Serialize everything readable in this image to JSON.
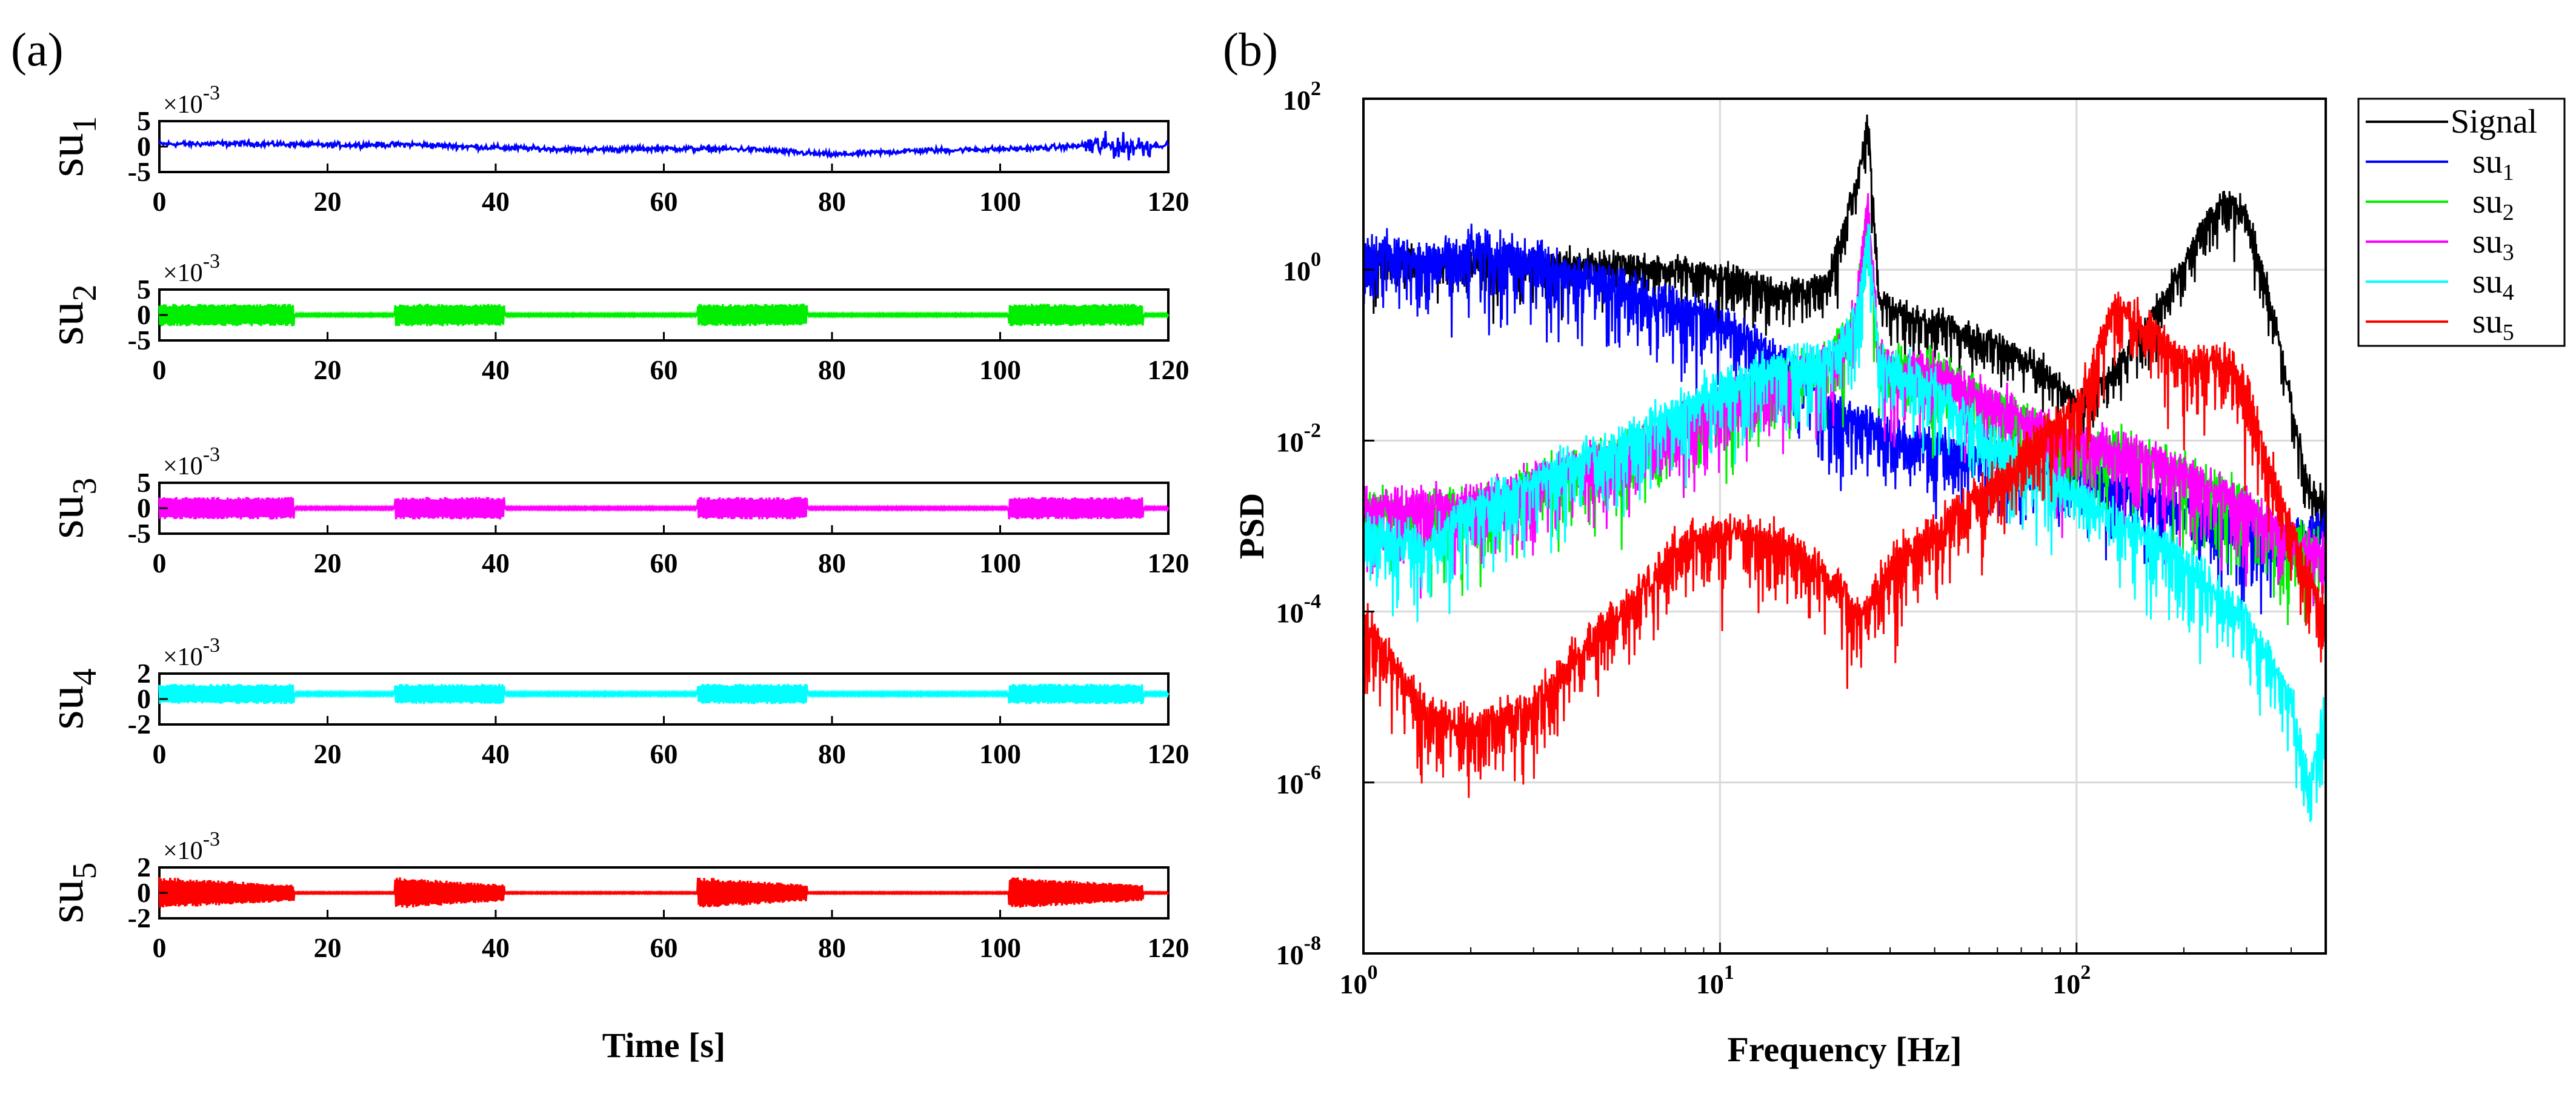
{
  "panel_a_label": "(a)",
  "panel_b_label": "(b)",
  "colors": {
    "su1": "#0000ff",
    "su2": "#00ee00",
    "su3": "#ff00ff",
    "su4": "#00ffff",
    "su5": "#ff0000",
    "signal": "#000000"
  },
  "chart_data": [
    {
      "id": "su1",
      "type": "line",
      "ylabel_main": "su",
      "ylabel_sub": "1",
      "scale_label": "×10",
      "scale_exp": "-3",
      "xlim": [
        0,
        120
      ],
      "ylim": [
        -5,
        5
      ],
      "yticks": [
        "5",
        "0",
        "-5"
      ],
      "xticks": [
        "0",
        "20",
        "40",
        "60",
        "80",
        "100",
        "120"
      ],
      "x": [
        0,
        10,
        20,
        30,
        40,
        50,
        60,
        70,
        80,
        90,
        100,
        105,
        110,
        115,
        120
      ],
      "y": [
        0.5,
        0.6,
        0.3,
        0.4,
        -0.2,
        -0.6,
        -0.4,
        -0.5,
        -1.6,
        -0.8,
        -0.5,
        -0.3,
        0.2,
        0.0,
        0.3
      ],
      "noise_amplitude": 0.8,
      "burst": {
        "x_start": 110,
        "x_end": 118,
        "amplitude": 3.5
      }
    },
    {
      "id": "su2",
      "type": "line",
      "ylabel_main": "su",
      "ylabel_sub": "2",
      "scale_label": "×10",
      "scale_exp": "-3",
      "xlim": [
        0,
        120
      ],
      "ylim": [
        -5,
        5
      ],
      "yticks": [
        "5",
        "0",
        "-5"
      ],
      "xticks": [
        "0",
        "20",
        "40",
        "60",
        "80",
        "100",
        "120"
      ],
      "active_segments": [
        [
          0,
          16
        ],
        [
          28,
          41
        ],
        [
          64,
          77
        ],
        [
          101,
          117
        ]
      ],
      "active_amplitude": 2.2,
      "quiet_amplitude": 0.2
    },
    {
      "id": "su3",
      "type": "line",
      "ylabel_main": "su",
      "ylabel_sub": "3",
      "scale_label": "×10",
      "scale_exp": "-3",
      "xlim": [
        0,
        120
      ],
      "ylim": [
        -5,
        5
      ],
      "yticks": [
        "5",
        "0",
        "-5"
      ],
      "xticks": [
        "0",
        "20",
        "40",
        "60",
        "80",
        "100",
        "120"
      ],
      "active_segments": [
        [
          0,
          16
        ],
        [
          28,
          41
        ],
        [
          64,
          77
        ],
        [
          101,
          117
        ]
      ],
      "active_amplitude": 2.2,
      "quiet_amplitude": 0.2
    },
    {
      "id": "su4",
      "type": "line",
      "ylabel_main": "su",
      "ylabel_sub": "4",
      "scale_label": "×10",
      "scale_exp": "-3",
      "xlim": [
        0,
        120
      ],
      "ylim": [
        -2,
        2
      ],
      "yticks": [
        "2",
        "0",
        "-2"
      ],
      "xticks": [
        "0",
        "20",
        "40",
        "60",
        "80",
        "100",
        "120"
      ],
      "active_segments": [
        [
          0,
          16
        ],
        [
          28,
          41
        ],
        [
          64,
          77
        ],
        [
          101,
          117
        ]
      ],
      "active_amplitude": 0.8,
      "quiet_amplitude": 0.1,
      "offset": 0.4
    },
    {
      "id": "su5",
      "type": "line",
      "ylabel_main": "su",
      "ylabel_sub": "5",
      "scale_label": "×10",
      "scale_exp": "-3",
      "xlim": [
        0,
        120
      ],
      "ylim": [
        -2,
        2
      ],
      "yticks": [
        "2",
        "0",
        "-2"
      ],
      "xticks": [
        "0",
        "20",
        "40",
        "60",
        "80",
        "100",
        "120"
      ],
      "xlabel": "Time [s]",
      "active_segments": [
        [
          0,
          16
        ],
        [
          28,
          41
        ],
        [
          64,
          77
        ],
        [
          101,
          117
        ]
      ],
      "active_amplitude": 1.0,
      "quiet_amplitude": 0.05,
      "decay": true
    },
    {
      "id": "psd",
      "type": "line",
      "xscale": "log",
      "yscale": "log",
      "xlim": [
        1,
        500
      ],
      "ylim": [
        1e-08,
        100
      ],
      "xlabel": "Frequency [Hz]",
      "ylabel": "PSD",
      "xticks": [
        {
          "base": "10",
          "exp": "0"
        },
        {
          "base": "10",
          "exp": "1"
        },
        {
          "base": "10",
          "exp": "2"
        }
      ],
      "yticks": [
        {
          "base": "10",
          "exp": "2"
        },
        {
          "base": "10",
          "exp": "0"
        },
        {
          "base": "10",
          "exp": "-2"
        },
        {
          "base": "10",
          "exp": "-4"
        },
        {
          "base": "10",
          "exp": "-6"
        },
        {
          "base": "10",
          "exp": "-8"
        }
      ],
      "grid": true,
      "legend": [
        {
          "main": "Signal",
          "sub": ""
        },
        {
          "main": "su",
          "sub": "1"
        },
        {
          "main": "su",
          "sub": "2"
        },
        {
          "main": "su",
          "sub": "3"
        },
        {
          "main": "su",
          "sub": "4"
        },
        {
          "main": "su",
          "sub": "5"
        }
      ],
      "legend_location": "outside-right",
      "series": [
        {
          "name": "Signal",
          "color_key": "signal",
          "freq": [
            1,
            5,
            10,
            15,
            20,
            25,
            26,
            28,
            35,
            45,
            60,
            80,
            100,
            130,
            150,
            180,
            220,
            260,
            300,
            350,
            400,
            450,
            500
          ],
          "psd": [
            1.5,
            1.3,
            1.0,
            0.6,
            0.8,
            20,
            60,
            0.5,
            0.3,
            0.25,
            0.15,
            0.08,
            0.03,
            0.08,
            0.2,
            0.6,
            3,
            8,
            5,
            0.5,
            0.03,
            0.003,
            0.002
          ]
        },
        {
          "name": "su1",
          "color_key": "su1",
          "freq": [
            1,
            1.5,
            2,
            3,
            5,
            8,
            10,
            15,
            20,
            25,
            26,
            28,
            40,
            60,
            100,
            200,
            300,
            400,
            500
          ],
          "psd": [
            2,
            1.5,
            2,
            1.5,
            0.8,
            0.4,
            0.3,
            0.1,
            0.03,
            0.02,
            0.02,
            0.015,
            0.01,
            0.008,
            0.005,
            0.002,
            0.001,
            0.001,
            0.001
          ]
        },
        {
          "name": "su2",
          "color_key": "su2",
          "freq": [
            1,
            2,
            3,
            5,
            8,
            10,
            15,
            20,
            24,
            26,
            28,
            40,
            60,
            100,
            130,
            200,
            300,
            400,
            500
          ],
          "psd": [
            0.002,
            0.002,
            0.004,
            0.008,
            0.02,
            0.03,
            0.06,
            0.1,
            0.3,
            5,
            0.1,
            0.08,
            0.03,
            0.01,
            0.01,
            0.005,
            0.002,
            0.0008,
            0.0006
          ]
        },
        {
          "name": "su3",
          "color_key": "su3",
          "freq": [
            1,
            2,
            3,
            5,
            8,
            10,
            15,
            20,
            24,
            26,
            28,
            40,
            60,
            100,
            130,
            200,
            300,
            400,
            500
          ],
          "psd": [
            0.002,
            0.002,
            0.004,
            0.008,
            0.02,
            0.03,
            0.06,
            0.1,
            0.3,
            8,
            0.1,
            0.08,
            0.03,
            0.01,
            0.01,
            0.005,
            0.002,
            0.0008,
            0.0006
          ]
        },
        {
          "name": "su4",
          "color_key": "su4",
          "freq": [
            1,
            1.5,
            2,
            3,
            5,
            8,
            10,
            15,
            20,
            24,
            26,
            28,
            40,
            60,
            100,
            150,
            200,
            300,
            400,
            450,
            500
          ],
          "psd": [
            0.001,
            0.0007,
            0.002,
            0.004,
            0.01,
            0.03,
            0.05,
            0.1,
            0.1,
            0.3,
            3,
            0.1,
            0.05,
            0.01,
            0.003,
            0.001,
            0.0005,
            0.0001,
            1e-05,
            1e-06,
            1e-05
          ]
        },
        {
          "name": "su5",
          "color_key": "su5",
          "freq": [
            1,
            1.5,
            2,
            3,
            5,
            8,
            10,
            15,
            20,
            25,
            30,
            40,
            60,
            100,
            130,
            150,
            200,
            260,
            300,
            350,
            400,
            450,
            500
          ],
          "psd": [
            0.0001,
            8e-06,
            5e-06,
            1e-05,
            0.0001,
            0.0008,
            0.001,
            0.0008,
            0.0003,
            0.0001,
            0.0004,
            0.001,
            0.004,
            0.03,
            0.5,
            0.3,
            0.1,
            0.1,
            0.05,
            0.005,
            0.001,
            0.0003,
            0.0001
          ]
        }
      ]
    }
  ]
}
